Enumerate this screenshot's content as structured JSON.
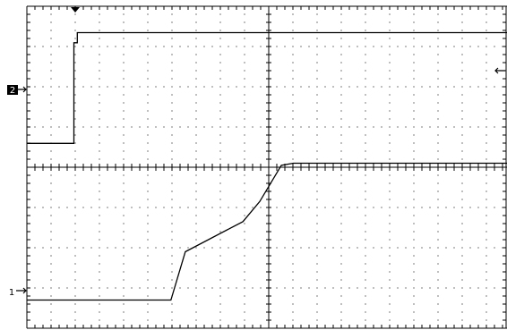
{
  "screen": {
    "background": "#ffffff",
    "grid": true
  },
  "markers": {
    "ch2_label": "2",
    "ch1_label": "1",
    "trigger_icon": "trigger-down-triangle-icon",
    "ch2_offset_icon": "arrow-right-icon",
    "ch1_offset_icon": "arrow-right-icon",
    "trigger_level_icon": "arrow-left-icon"
  },
  "colors": {
    "trace": "#000000",
    "grid": "#000000",
    "label_badge": "#000000",
    "label_badge_text": "#ffffff"
  },
  "chart_data": {
    "type": "line",
    "title": "",
    "xlabel": "",
    "ylabel": "",
    "grid": true,
    "divisions": {
      "x": 10,
      "y": 8
    },
    "series": [
      {
        "name": "2",
        "points": [
          [
            0,
            0.55
          ],
          [
            0.98,
            0.55
          ],
          [
            0.98,
            3.05
          ],
          [
            1.05,
            3.05
          ],
          [
            1.05,
            3.3
          ],
          [
            10,
            3.3
          ]
        ]
      },
      {
        "name": "1",
        "points": [
          [
            0,
            0.7
          ],
          [
            3,
            0.7
          ],
          [
            3.3,
            1.9
          ],
          [
            4.5,
            2.65
          ],
          [
            4.85,
            3.15
          ],
          [
            5.3,
            4.05
          ],
          [
            5.55,
            4.1
          ],
          [
            10,
            4.1
          ]
        ]
      }
    ]
  }
}
